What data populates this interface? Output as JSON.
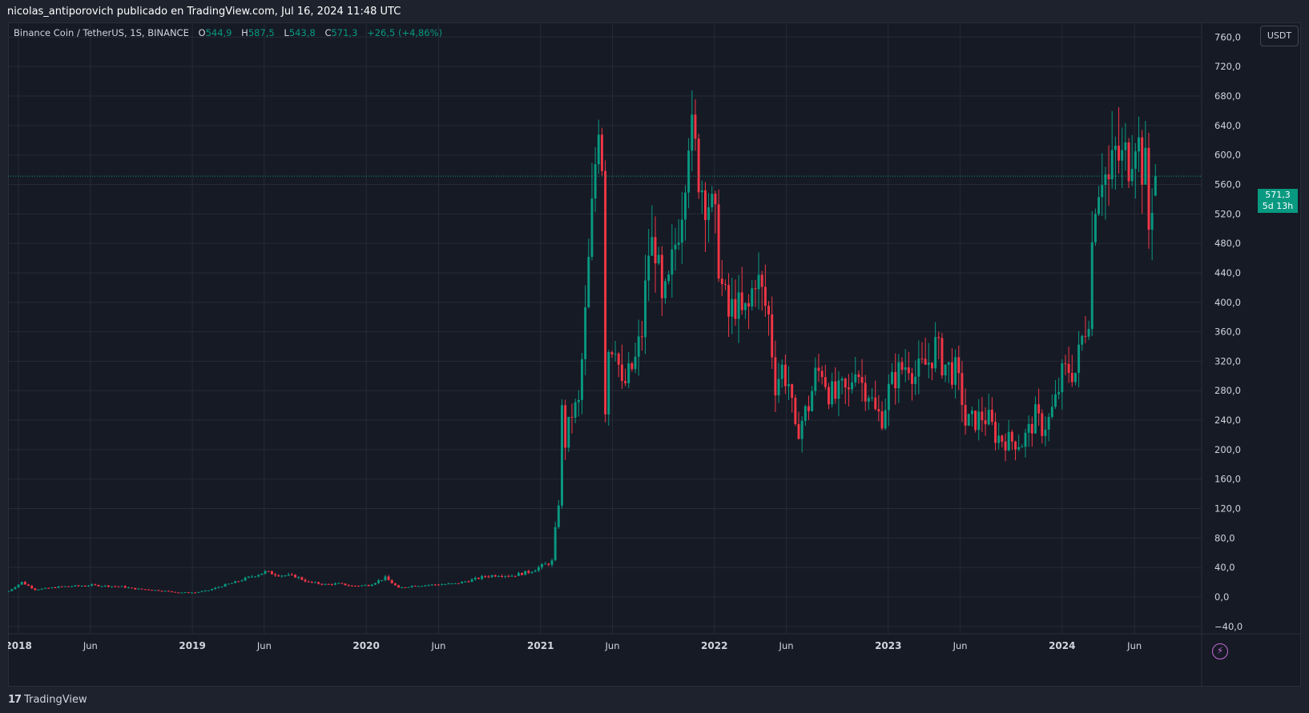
{
  "header": {
    "publisher_line": "nicolas_antiporovich publicado en TradingView.com, Jul 16, 2024 11:48 UTC"
  },
  "legend": {
    "symbol": "Binance Coin / TetherUS, 1S, BINANCE",
    "open_label": "O",
    "open_value": "544,9",
    "high_label": "H",
    "high_value": "587,5",
    "low_label": "L",
    "low_value": "543,8",
    "close_label": "C",
    "close_value": "571,3",
    "change": "+26,5 (+4,86%)"
  },
  "currency_button": "USDT",
  "last_price": {
    "value": "571,3",
    "countdown": "5d 13h"
  },
  "brand": {
    "logo": "17",
    "name": "TradingView"
  },
  "colors": {
    "up": "#089981",
    "down": "#f23645",
    "background": "#161a25",
    "grid": "#262a35",
    "text": "#d1d4dc",
    "accent": "#c56bd6"
  },
  "icons": {
    "alert": "lightning-icon"
  },
  "chart_data": {
    "type": "candlestick",
    "interval": "1 week",
    "quote_currency": "USDT",
    "ylim": [
      -50,
      780
    ],
    "y_ticks": [
      -40,
      0,
      40,
      80,
      120,
      160,
      200,
      240,
      280,
      320,
      360,
      400,
      440,
      480,
      520,
      560,
      600,
      640,
      680,
      720,
      760
    ],
    "y_tick_labels": [
      "−40,0",
      "0,0",
      "40,0",
      "80,0",
      "120,0",
      "160,0",
      "200,0",
      "240,0",
      "280,0",
      "320,0",
      "360,0",
      "400,0",
      "440,0",
      "480,0",
      "520,0",
      "560,0",
      "600,0",
      "640,0",
      "680,0",
      "720,0",
      "760,0"
    ],
    "x_ticks": [
      {
        "label": "2018",
        "date": "2018-01-01"
      },
      {
        "label": "Jun",
        "date": "2018-06-01"
      },
      {
        "label": "2019",
        "date": "2019-01-01"
      },
      {
        "label": "Jun",
        "date": "2019-06-01"
      },
      {
        "label": "2020",
        "date": "2020-01-01"
      },
      {
        "label": "Jun",
        "date": "2020-06-01"
      },
      {
        "label": "2021",
        "date": "2021-01-01"
      },
      {
        "label": "Jun",
        "date": "2021-06-01"
      },
      {
        "label": "2022",
        "date": "2022-01-01"
      },
      {
        "label": "Jun",
        "date": "2022-06-01"
      },
      {
        "label": "2023",
        "date": "2023-01-01"
      },
      {
        "label": "Jun",
        "date": "2023-06-01"
      },
      {
        "label": "2024",
        "date": "2024-01-01"
      },
      {
        "label": "Jun",
        "date": "2024-06-01"
      }
    ],
    "x_range": [
      "2017-12-10",
      "2024-10-20"
    ],
    "last_price_line": 571.3,
    "price_path": [
      [
        "2017-12-11",
        8
      ],
      [
        "2018-01-08",
        20
      ],
      [
        "2018-02-05",
        10
      ],
      [
        "2018-03-05",
        12
      ],
      [
        "2018-04-02",
        14
      ],
      [
        "2018-05-07",
        15
      ],
      [
        "2018-06-04",
        16
      ],
      [
        "2018-07-02",
        15
      ],
      [
        "2018-08-06",
        14
      ],
      [
        "2018-09-03",
        11
      ],
      [
        "2018-10-01",
        10
      ],
      [
        "2018-11-05",
        8
      ],
      [
        "2018-12-03",
        6
      ],
      [
        "2019-01-07",
        6
      ],
      [
        "2019-02-04",
        9
      ],
      [
        "2019-03-04",
        15
      ],
      [
        "2019-04-01",
        20
      ],
      [
        "2019-05-06",
        28
      ],
      [
        "2019-06-03",
        34
      ],
      [
        "2019-07-01",
        30
      ],
      [
        "2019-08-05",
        28
      ],
      [
        "2019-09-02",
        20
      ],
      [
        "2019-10-07",
        17
      ],
      [
        "2019-11-04",
        18
      ],
      [
        "2019-12-02",
        15
      ],
      [
        "2020-01-06",
        16
      ],
      [
        "2020-02-10",
        26
      ],
      [
        "2020-03-09",
        12
      ],
      [
        "2020-04-06",
        15
      ],
      [
        "2020-05-04",
        16
      ],
      [
        "2020-06-01",
        17
      ],
      [
        "2020-07-06",
        18
      ],
      [
        "2020-08-03",
        22
      ],
      [
        "2020-09-07",
        28
      ],
      [
        "2020-10-05",
        30
      ],
      [
        "2020-11-02",
        29
      ],
      [
        "2020-12-07",
        34
      ],
      [
        "2021-01-04",
        42
      ],
      [
        "2021-01-25",
        48
      ],
      [
        "2021-02-08",
        130
      ],
      [
        "2021-02-15",
        250
      ],
      [
        "2021-02-22",
        210
      ],
      [
        "2021-03-08",
        250
      ],
      [
        "2021-03-22",
        260
      ],
      [
        "2021-04-05",
        380
      ],
      [
        "2021-04-19",
        520
      ],
      [
        "2021-05-03",
        660
      ],
      [
        "2021-05-10",
        600
      ],
      [
        "2021-05-17",
        260
      ],
      [
        "2021-05-24",
        340
      ],
      [
        "2021-06-07",
        350
      ],
      [
        "2021-06-21",
        280
      ],
      [
        "2021-07-05",
        300
      ],
      [
        "2021-07-19",
        320
      ],
      [
        "2021-08-02",
        360
      ],
      [
        "2021-08-16",
        470
      ],
      [
        "2021-08-30",
        480
      ],
      [
        "2021-09-13",
        390
      ],
      [
        "2021-09-27",
        420
      ],
      [
        "2021-10-11",
        480
      ],
      [
        "2021-10-25",
        540
      ],
      [
        "2021-11-08",
        640
      ],
      [
        "2021-11-22",
        600
      ],
      [
        "2021-12-06",
        560
      ],
      [
        "2021-12-20",
        540
      ],
      [
        "2022-01-03",
        500
      ],
      [
        "2022-01-17",
        420
      ],
      [
        "2022-01-31",
        380
      ],
      [
        "2022-02-14",
        400
      ],
      [
        "2022-02-28",
        380
      ],
      [
        "2022-03-14",
        390
      ],
      [
        "2022-03-28",
        440
      ],
      [
        "2022-04-11",
        410
      ],
      [
        "2022-04-25",
        380
      ],
      [
        "2022-05-09",
        290
      ],
      [
        "2022-05-23",
        310
      ],
      [
        "2022-06-06",
        290
      ],
      [
        "2022-06-20",
        220
      ],
      [
        "2022-07-04",
        240
      ],
      [
        "2022-07-18",
        260
      ],
      [
        "2022-08-01",
        300
      ],
      [
        "2022-08-15",
        310
      ],
      [
        "2022-08-29",
        280
      ],
      [
        "2022-09-12",
        270
      ],
      [
        "2022-09-26",
        280
      ],
      [
        "2022-10-10",
        275
      ],
      [
        "2022-10-24",
        320
      ],
      [
        "2022-11-07",
        290
      ],
      [
        "2022-11-21",
        280
      ],
      [
        "2022-12-05",
        250
      ],
      [
        "2022-12-19",
        245
      ],
      [
        "2023-01-02",
        280
      ],
      [
        "2023-01-16",
        300
      ],
      [
        "2023-01-30",
        310
      ],
      [
        "2023-02-13",
        320
      ],
      [
        "2023-02-27",
        300
      ],
      [
        "2023-03-13",
        310
      ],
      [
        "2023-03-27",
        320
      ],
      [
        "2023-04-10",
        340
      ],
      [
        "2023-04-24",
        320
      ],
      [
        "2023-05-08",
        310
      ],
      [
        "2023-05-22",
        305
      ],
      [
        "2023-06-05",
        270
      ],
      [
        "2023-06-12",
        235
      ],
      [
        "2023-07-03",
        240
      ],
      [
        "2023-07-17",
        245
      ],
      [
        "2023-07-31",
        240
      ],
      [
        "2023-08-14",
        220
      ],
      [
        "2023-08-28",
        215
      ],
      [
        "2023-09-11",
        212
      ],
      [
        "2023-09-25",
        212
      ],
      [
        "2023-10-09",
        210
      ],
      [
        "2023-10-23",
        225
      ],
      [
        "2023-11-06",
        245
      ],
      [
        "2023-11-20",
        230
      ],
      [
        "2023-12-04",
        240
      ],
      [
        "2023-12-18",
        265
      ],
      [
        "2024-01-01",
        300
      ],
      [
        "2024-01-15",
        310
      ],
      [
        "2024-01-29",
        305
      ],
      [
        "2024-02-12",
        350
      ],
      [
        "2024-02-26",
        390
      ],
      [
        "2024-03-04",
        480
      ],
      [
        "2024-03-11",
        550
      ],
      [
        "2024-03-25",
        585
      ],
      [
        "2024-04-08",
        560
      ],
      [
        "2024-04-22",
        600
      ],
      [
        "2024-05-06",
        590
      ],
      [
        "2024-05-20",
        600
      ],
      [
        "2024-06-03",
        640
      ],
      [
        "2024-06-10",
        610
      ],
      [
        "2024-06-17",
        590
      ],
      [
        "2024-06-24",
        575
      ],
      [
        "2024-07-01",
        500
      ],
      [
        "2024-07-08",
        545
      ],
      [
        "2024-07-15",
        571.3
      ]
    ]
  }
}
